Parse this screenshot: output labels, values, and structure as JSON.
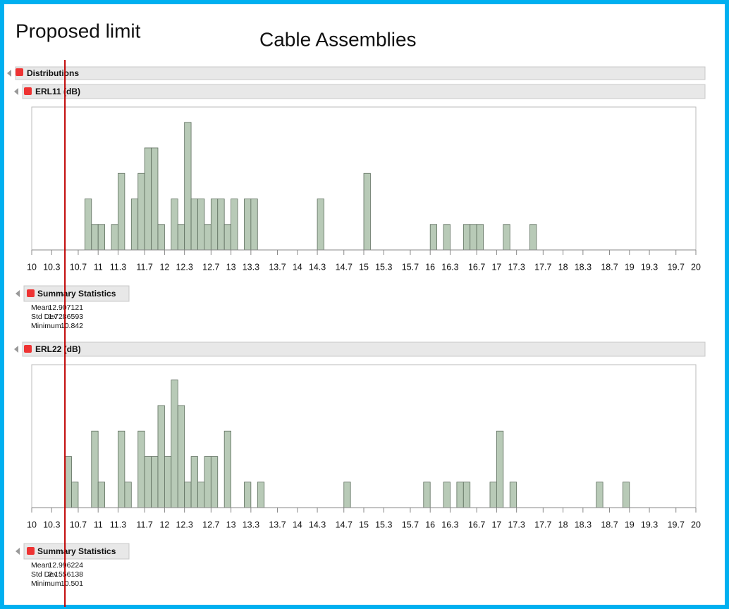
{
  "header": {
    "note": "Proposed limit",
    "title": "Cable Assemblies"
  },
  "limit": {
    "value": 10.5
  },
  "outline": {
    "title": "Distributions"
  },
  "chart_data": [
    {
      "type": "histogram",
      "title": "ERL11 (dB)",
      "color": "#b8cab7",
      "bins": [
        10.8,
        10.9,
        11,
        11.1,
        11.2,
        11.3,
        11.4,
        11.5,
        11.6,
        11.7,
        11.8,
        11.9,
        12,
        12.1,
        12.2,
        12.3,
        12.4,
        12.5,
        12.6,
        12.7,
        12.8,
        12.9,
        13,
        13.1,
        13.2,
        13.3,
        13.4,
        13.5,
        13.6,
        13.7,
        13.8,
        13.9,
        14,
        14.1,
        14.2,
        14.3,
        14.4,
        14.5,
        14.6,
        14.7,
        14.8,
        14.9,
        15,
        15.1,
        15.2,
        15.3,
        15.4,
        15.5,
        15.6,
        15.7,
        15.8,
        15.9,
        16,
        16.1,
        16.2,
        16.3,
        16.4,
        16.5,
        16.6,
        16.7,
        16.8,
        16.9,
        17,
        17.1,
        17.2,
        17.3,
        17.4,
        17.5,
        17.6
      ],
      "counts": [
        2,
        1,
        1,
        0,
        1,
        3,
        0,
        2,
        3,
        4,
        4,
        1,
        0,
        2,
        1,
        5,
        2,
        2,
        1,
        2,
        2,
        1,
        2,
        0,
        2,
        2,
        0,
        0,
        0,
        0,
        0,
        0,
        0,
        0,
        0,
        2,
        0,
        0,
        0,
        0,
        0,
        0,
        3,
        0,
        0,
        0,
        0,
        0,
        0,
        0,
        0,
        0,
        1,
        0,
        1,
        0,
        0,
        1,
        1,
        1,
        0,
        0,
        0,
        1,
        0,
        0,
        0,
        1
      ],
      "xlim": [
        10,
        20
      ],
      "xticks": [
        10,
        10.3,
        10.7,
        11,
        11.3,
        11.7,
        12,
        12.3,
        12.7,
        13,
        13.3,
        13.7,
        14,
        14.3,
        14.7,
        15,
        15.3,
        15.7,
        16,
        16.3,
        16.7,
        17,
        17.3,
        17.7,
        18,
        18.3,
        18.7,
        19,
        19.3,
        19.7,
        20
      ],
      "ylim": [
        0,
        5.6
      ],
      "summary": {
        "title": "Summary Statistics",
        "rows": [
          [
            "Mean",
            "12.907121"
          ],
          [
            "Std Dev",
            "1.7286593"
          ],
          [
            "Minimum",
            "10.842"
          ]
        ]
      }
    },
    {
      "type": "histogram",
      "title": "ERL22 (dB)",
      "color": "#b8cab7",
      "bins": [
        10.5,
        10.6,
        10.7,
        10.8,
        10.9,
        11,
        11.1,
        11.2,
        11.3,
        11.4,
        11.5,
        11.6,
        11.7,
        11.8,
        11.9,
        12,
        12.1,
        12.2,
        12.3,
        12.4,
        12.5,
        12.6,
        12.7,
        12.8,
        12.9,
        13,
        13.1,
        13.2,
        13.3,
        13.4,
        13.5,
        13.6,
        13.7,
        13.8,
        13.9,
        14,
        14.1,
        14.2,
        14.3,
        14.4,
        14.5,
        14.6,
        14.7,
        14.8,
        14.9,
        15,
        15.1,
        15.2,
        15.3,
        15.4,
        15.5,
        15.6,
        15.7,
        15.8,
        15.9,
        16,
        16.1,
        16.2,
        16.3,
        16.4,
        16.5,
        16.6,
        16.7,
        16.8,
        16.9,
        17,
        17.1,
        17.2,
        17.3,
        17.4,
        17.5,
        17.6,
        17.7,
        17.8,
        17.9,
        18,
        18.1,
        18.2,
        18.3,
        18.4,
        18.5,
        18.6,
        18.7,
        18.8,
        18.9,
        19
      ],
      "counts": [
        2,
        1,
        0,
        0,
        3,
        1,
        0,
        0,
        3,
        1,
        0,
        3,
        2,
        2,
        4,
        2,
        5,
        4,
        1,
        2,
        1,
        2,
        2,
        0,
        3,
        0,
        0,
        1,
        0,
        1,
        0,
        0,
        0,
        0,
        0,
        0,
        0,
        0,
        0,
        0,
        0,
        0,
        1,
        0,
        0,
        0,
        0,
        0,
        0,
        0,
        0,
        0,
        0,
        0,
        1,
        0,
        0,
        1,
        0,
        1,
        1,
        0,
        0,
        0,
        1,
        3,
        0,
        1,
        0,
        0,
        0,
        0,
        0,
        0,
        0,
        0,
        0,
        0,
        0,
        0,
        1,
        0,
        0,
        0,
        1
      ],
      "xlim": [
        10,
        20
      ],
      "xticks": [
        10,
        10.3,
        10.7,
        11,
        11.3,
        11.7,
        12,
        12.3,
        12.7,
        13,
        13.3,
        13.7,
        14,
        14.3,
        14.7,
        15,
        15.3,
        15.7,
        16,
        16.3,
        16.7,
        17,
        17.3,
        17.7,
        18,
        18.3,
        18.7,
        19,
        19.3,
        19.7,
        20
      ],
      "ylim": [
        0,
        5.6
      ],
      "summary": {
        "title": "Summary Statistics",
        "rows": [
          [
            "Mean",
            "12.996224"
          ],
          [
            "Std Dev",
            "2.1556138"
          ],
          [
            "Minimum",
            "10.501"
          ]
        ]
      }
    }
  ]
}
